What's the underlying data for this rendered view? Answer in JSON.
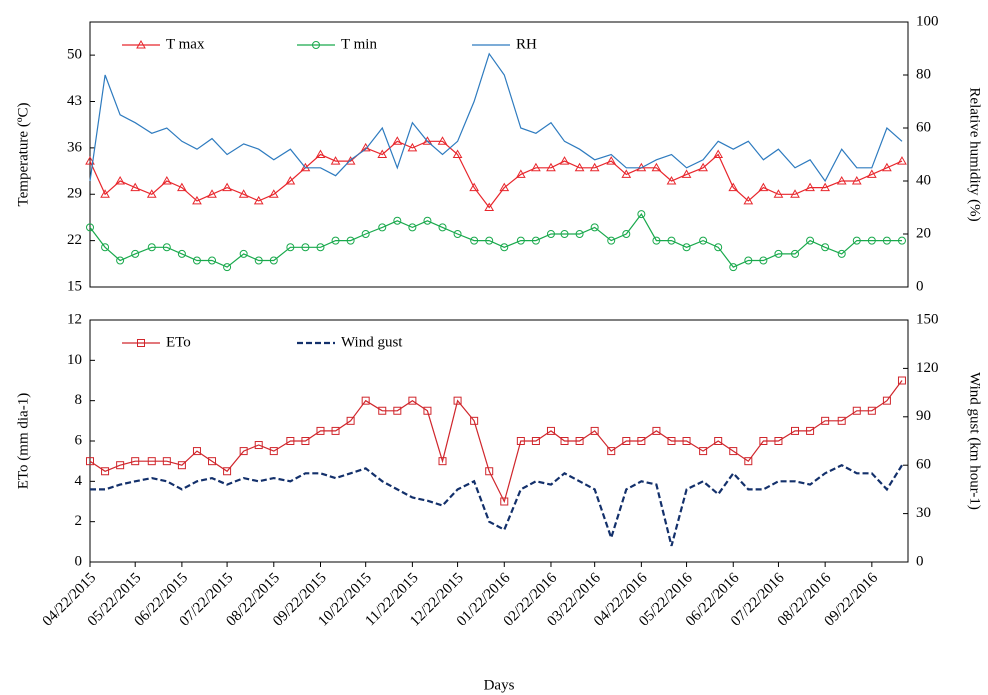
{
  "chart_data": [
    {
      "type": "line",
      "x": [
        "04/22/2015",
        "05/02/2015",
        "05/12/2015",
        "05/22/2015",
        "06/02/2015",
        "06/12/2015",
        "06/22/2015",
        "07/02/2015",
        "07/12/2015",
        "07/22/2015",
        "08/02/2015",
        "08/12/2015",
        "08/22/2015",
        "09/02/2015",
        "09/12/2015",
        "09/22/2015",
        "10/02/2015",
        "10/12/2015",
        "10/22/2015",
        "11/02/2015",
        "11/12/2015",
        "11/22/2015",
        "12/02/2015",
        "12/12/2015",
        "12/22/2015",
        "01/02/2016",
        "01/12/2016",
        "01/22/2016",
        "02/02/2016",
        "02/12/2016",
        "02/22/2016",
        "03/02/2016",
        "03/12/2016",
        "03/22/2016",
        "04/02/2016",
        "04/12/2016",
        "04/22/2016",
        "05/02/2016",
        "05/12/2016",
        "05/22/2016",
        "06/02/2016",
        "06/12/2016",
        "06/22/2016",
        "07/02/2016",
        "07/12/2016",
        "07/22/2016",
        "08/02/2016",
        "08/12/2016",
        "08/22/2016",
        "09/02/2016",
        "09/12/2016",
        "09/22/2016",
        "10/02/2016",
        "10/12/2016"
      ],
      "xlim": [
        "04/22/2015",
        "10/16/2016"
      ],
      "ylabel": "Temperature (ºC)",
      "y2label": "Relative humidity (%)",
      "ylim": [
        15,
        55
      ],
      "yticks": [
        15,
        22,
        29,
        36,
        43,
        50
      ],
      "y2lim": [
        0,
        100
      ],
      "y2ticks": [
        0,
        20,
        40,
        60,
        80,
        100
      ],
      "legend": "upper left",
      "series": [
        {
          "name": "T max",
          "color": "#e8262c",
          "marker": "triangle",
          "values": [
            34,
            29,
            31,
            30,
            29,
            31,
            30,
            28,
            29,
            30,
            29,
            28,
            29,
            31,
            33,
            35,
            34,
            34,
            36,
            35,
            37,
            36,
            37,
            37,
            35,
            30,
            27,
            30,
            32,
            33,
            33,
            34,
            33,
            33,
            34,
            32,
            33,
            33,
            31,
            32,
            33,
            35,
            30,
            28,
            30,
            29,
            29,
            30,
            30,
            31,
            31,
            32,
            33,
            34
          ]
        },
        {
          "name": "T min",
          "color": "#19a94c",
          "marker": "circle",
          "values": [
            24,
            21,
            19,
            20,
            21,
            21,
            20,
            19,
            19,
            18,
            20,
            19,
            19,
            21,
            21,
            21,
            22,
            22,
            23,
            24,
            25,
            24,
            25,
            24,
            23,
            22,
            22,
            21,
            22,
            22,
            23,
            23,
            23,
            24,
            22,
            23,
            26,
            22,
            22,
            21,
            22,
            21,
            18,
            19,
            19,
            20,
            20,
            22,
            21,
            20,
            22,
            22,
            22,
            22
          ]
        },
        {
          "name": "RH",
          "color": "#2e7bbf",
          "marker": "none",
          "axis": "y2",
          "values": [
            40,
            80,
            65,
            62,
            58,
            60,
            55,
            52,
            56,
            50,
            54,
            52,
            48,
            52,
            45,
            45,
            42,
            48,
            52,
            60,
            45,
            62,
            55,
            50,
            55,
            70,
            88,
            80,
            60,
            58,
            62,
            55,
            52,
            48,
            50,
            45,
            45,
            48,
            50,
            45,
            48,
            55,
            52,
            55,
            48,
            52,
            45,
            48,
            40,
            52,
            45,
            45,
            60,
            55
          ]
        }
      ]
    },
    {
      "type": "line",
      "x": [
        "04/22/2015",
        "05/02/2015",
        "05/12/2015",
        "05/22/2015",
        "06/02/2015",
        "06/12/2015",
        "06/22/2015",
        "07/02/2015",
        "07/12/2015",
        "07/22/2015",
        "08/02/2015",
        "08/12/2015",
        "08/22/2015",
        "09/02/2015",
        "09/12/2015",
        "09/22/2015",
        "10/02/2015",
        "10/12/2015",
        "10/22/2015",
        "11/02/2015",
        "11/12/2015",
        "11/22/2015",
        "12/02/2015",
        "12/12/2015",
        "12/22/2015",
        "01/02/2016",
        "01/12/2016",
        "01/22/2016",
        "02/02/2016",
        "02/12/2016",
        "02/22/2016",
        "03/02/2016",
        "03/12/2016",
        "03/22/2016",
        "04/02/2016",
        "04/12/2016",
        "04/22/2016",
        "05/02/2016",
        "05/12/2016",
        "05/22/2016",
        "06/02/2016",
        "06/12/2016",
        "06/22/2016",
        "07/02/2016",
        "07/12/2016",
        "07/22/2016",
        "08/02/2016",
        "08/12/2016",
        "08/22/2016",
        "09/02/2016",
        "09/12/2016",
        "09/22/2016",
        "10/02/2016",
        "10/12/2016"
      ],
      "xlim": [
        "04/22/2015",
        "10/16/2016"
      ],
      "xticks": [
        "04/22/2015",
        "05/22/2015",
        "06/22/2015",
        "07/22/2015",
        "08/22/2015",
        "09/22/2015",
        "10/22/2015",
        "11/22/2015",
        "12/22/2015",
        "01/22/2016",
        "02/22/2016",
        "03/22/2016",
        "04/22/2016",
        "05/22/2016",
        "06/22/2016",
        "07/22/2016",
        "08/22/2016",
        "09/22/2016"
      ],
      "xlabel": "Days",
      "ylabel": "ETo (mm  dia-1)",
      "y2label": "Wind gust (km hour-1)",
      "ylim": [
        0,
        12
      ],
      "yticks": [
        0,
        2,
        4,
        6,
        8,
        10,
        12
      ],
      "y2lim": [
        0,
        150
      ],
      "y2ticks": [
        0,
        30,
        60,
        90,
        120,
        150
      ],
      "legend": "upper left",
      "series": [
        {
          "name": "ETo",
          "color": "#d0262c",
          "marker": "square",
          "values": [
            5,
            4.5,
            4.8,
            5,
            5,
            5,
            4.8,
            5.5,
            5,
            4.5,
            5.5,
            5.8,
            5.5,
            6,
            6,
            6.5,
            6.5,
            7,
            8,
            7.5,
            7.5,
            8,
            7.5,
            5,
            8,
            7,
            4.5,
            3,
            6,
            6,
            6.5,
            6,
            6,
            6.5,
            5.5,
            6,
            6,
            6.5,
            6,
            6,
            5.5,
            6,
            5.5,
            5,
            6,
            6,
            6.5,
            6.5,
            7,
            7,
            7.5,
            7.5,
            8,
            9
          ]
        },
        {
          "name": "Wind gust",
          "color": "#13306b",
          "marker": "none",
          "dash": true,
          "axis": "y2",
          "values": [
            45,
            45,
            48,
            50,
            52,
            50,
            45,
            50,
            52,
            48,
            52,
            50,
            52,
            50,
            55,
            55,
            52,
            55,
            58,
            50,
            45,
            40,
            38,
            35,
            45,
            50,
            25,
            20,
            45,
            50,
            48,
            55,
            50,
            45,
            15,
            45,
            50,
            48,
            10,
            45,
            50,
            42,
            55,
            45,
            45,
            50,
            50,
            48,
            55,
            60,
            55,
            55,
            45,
            60
          ]
        }
      ]
    }
  ]
}
